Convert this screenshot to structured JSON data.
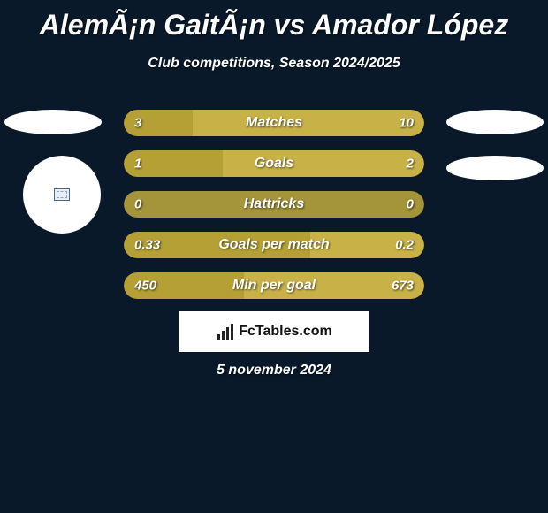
{
  "title": "AlemÃ¡n GaitÃ¡n vs Amador López",
  "subtitle": "Club competitions, Season 2024/2025",
  "date": "5 november 2024",
  "branding_text": "FcTables.com",
  "colors": {
    "background": "#0a1929",
    "player1": "#b4a035",
    "player2": "#c8b248",
    "bar_empty": "#a4943a",
    "text": "#ffffff",
    "branding_bg": "#ffffff",
    "branding_text": "#111111"
  },
  "bars": [
    {
      "label": "Matches",
      "left_value": "3",
      "right_value": "10",
      "left_raw": 3,
      "right_raw": 10,
      "left_pct": 23,
      "right_pct": 77,
      "left_color": "#b4a035",
      "right_color": "#c8b248"
    },
    {
      "label": "Goals",
      "left_value": "1",
      "right_value": "2",
      "left_raw": 1,
      "right_raw": 2,
      "left_pct": 33,
      "right_pct": 67,
      "left_color": "#b4a035",
      "right_color": "#c8b248"
    },
    {
      "label": "Hattricks",
      "left_value": "0",
      "right_value": "0",
      "left_raw": 0,
      "right_raw": 0,
      "left_pct": 50,
      "right_pct": 50,
      "left_color": "#a4943a",
      "right_color": "#a4943a"
    },
    {
      "label": "Goals per match",
      "left_value": "0.33",
      "right_value": "0.2",
      "left_raw": 0.33,
      "right_raw": 0.2,
      "left_pct": 62,
      "right_pct": 38,
      "left_color": "#b4a035",
      "right_color": "#c8b248"
    },
    {
      "label": "Min per goal",
      "left_value": "450",
      "right_value": "673",
      "left_raw": 450,
      "right_raw": 673,
      "left_pct": 40,
      "right_pct": 60,
      "left_color": "#b4a035",
      "right_color": "#c8b248"
    }
  ]
}
